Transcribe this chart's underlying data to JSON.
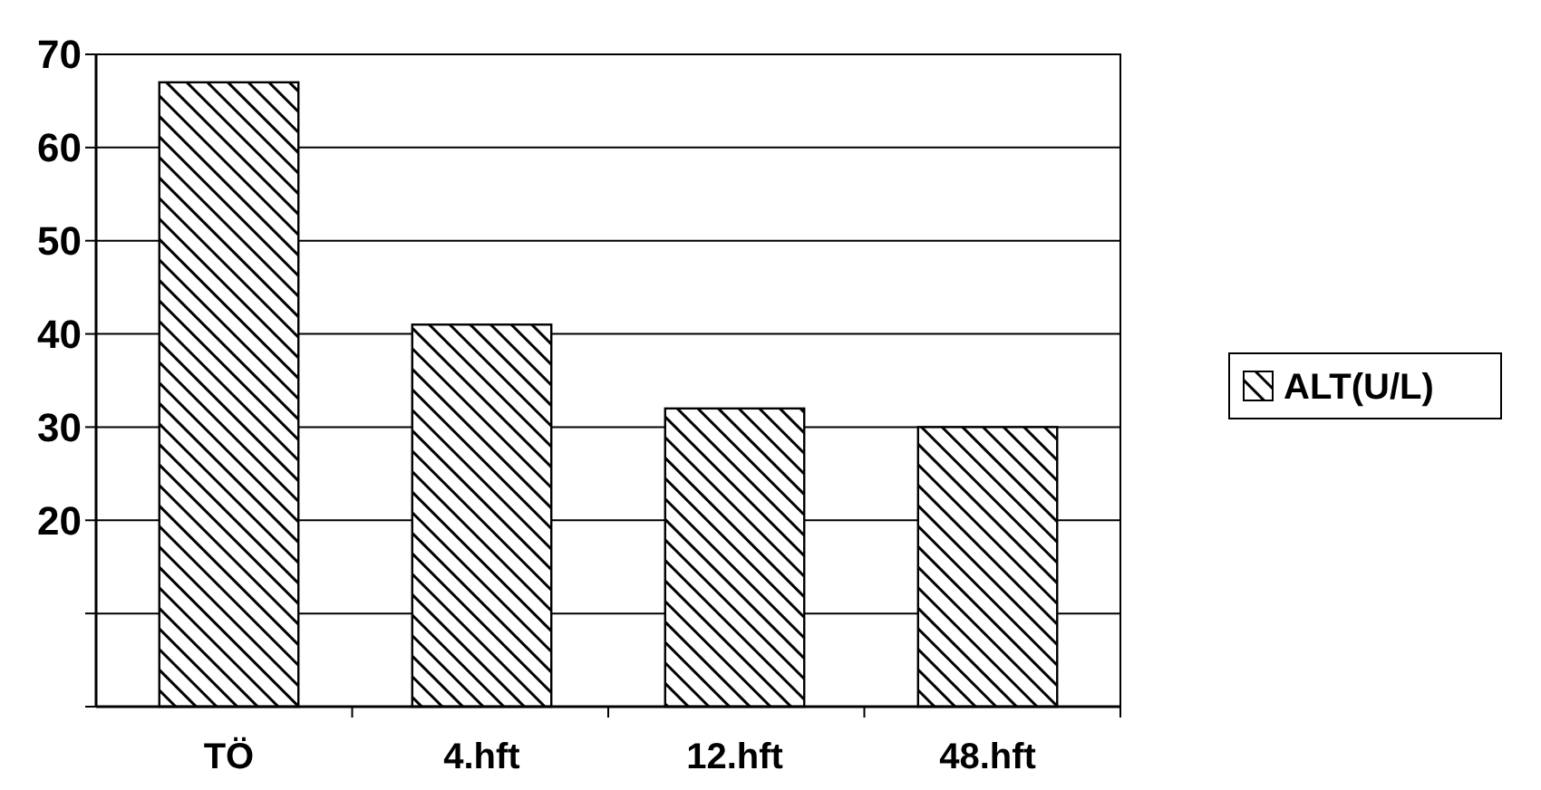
{
  "chart_data": {
    "type": "bar",
    "categories": [
      "TÖ",
      "4.hft",
      "12.hft",
      "48.hft"
    ],
    "series": [
      {
        "name": "ALT(U/L)",
        "color": "#000000",
        "values": [
          67,
          41,
          32,
          30
        ]
      }
    ],
    "ylim": [
      0,
      70
    ],
    "yticks": [
      {
        "value": 0,
        "label": null
      },
      {
        "value": 10,
        "label": null
      },
      20,
      30,
      40,
      50,
      60,
      70
    ],
    "grid": "y",
    "legend": "right"
  }
}
